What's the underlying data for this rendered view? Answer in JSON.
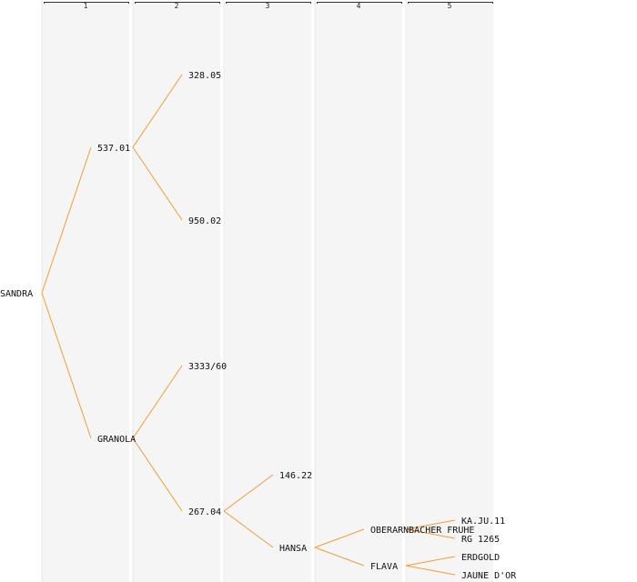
{
  "generation_columns": [
    "1",
    "2",
    "3",
    "4",
    "5"
  ],
  "colors": {
    "link": "#f39c37",
    "column_band": "#f5f5f5",
    "column_separator": "#e9e9e9",
    "bracket": "#333333",
    "text": "#111111"
  },
  "pedigree": {
    "name": "SANDRA",
    "children": [
      {
        "name": "537.01",
        "children": [
          {
            "name": "328.05"
          },
          {
            "name": "950.02"
          }
        ]
      },
      {
        "name": "GRANOLA",
        "children": [
          {
            "name": "3333/60"
          },
          {
            "name": "267.04",
            "children": [
              {
                "name": "146.22"
              },
              {
                "name": "HANSA",
                "children": [
                  {
                    "name": "OBERARNBACHER FRUHE",
                    "children": [
                      {
                        "name": "KA.JU.11"
                      },
                      {
                        "name": "RG 1265"
                      }
                    ]
                  },
                  {
                    "name": "FLAVA",
                    "children": [
                      {
                        "name": "ERDGOLD"
                      },
                      {
                        "name": "JAUNE D'OR"
                      }
                    ]
                  }
                ]
              }
            ]
          }
        ]
      }
    ]
  }
}
